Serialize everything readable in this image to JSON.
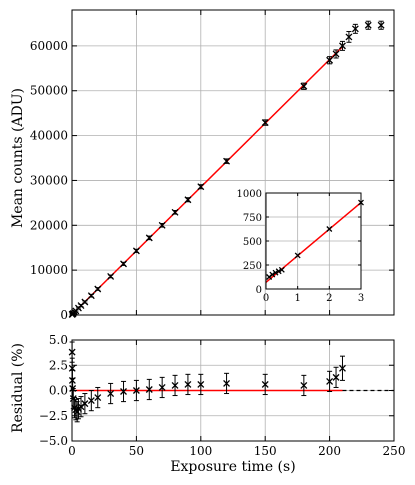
{
  "chart_data": [
    {
      "type": "scatter",
      "panel": "main",
      "ylabel": "Mean counts (ADU)",
      "xlim": [
        0,
        250
      ],
      "ylim": [
        0,
        68000
      ],
      "grid": true,
      "xticks": [
        0,
        50,
        100,
        150,
        200,
        250
      ],
      "yticks": [
        0,
        10000,
        20000,
        30000,
        40000,
        50000,
        60000
      ],
      "ytick_labels": [
        "0",
        "10000",
        "20000",
        "30000",
        "40000",
        "50000",
        "60000"
      ],
      "fit_line": {
        "x": [
          0,
          210
        ],
        "y": [
          95,
          59800
        ],
        "color": "#ff0000"
      },
      "points": [
        {
          "x": 0.1,
          "y": 125,
          "err": 150
        },
        {
          "x": 0.2,
          "y": 150,
          "err": 150
        },
        {
          "x": 0.3,
          "y": 170,
          "err": 150
        },
        {
          "x": 0.5,
          "y": 200,
          "err": 150
        },
        {
          "x": 1,
          "y": 350,
          "err": 150
        },
        {
          "x": 2,
          "y": 630,
          "err": 200
        },
        {
          "x": 3,
          "y": 900,
          "err": 200
        },
        {
          "x": 5,
          "y": 1550,
          "err": 200
        },
        {
          "x": 7,
          "y": 2100,
          "err": 250
        },
        {
          "x": 10,
          "y": 2900,
          "err": 250
        },
        {
          "x": 15,
          "y": 4300,
          "err": 300
        },
        {
          "x": 20,
          "y": 5800,
          "err": 300
        },
        {
          "x": 30,
          "y": 8600,
          "err": 300
        },
        {
          "x": 40,
          "y": 11400,
          "err": 350
        },
        {
          "x": 50,
          "y": 14300,
          "err": 350
        },
        {
          "x": 60,
          "y": 17200,
          "err": 400
        },
        {
          "x": 70,
          "y": 20000,
          "err": 400
        },
        {
          "x": 80,
          "y": 22900,
          "err": 400
        },
        {
          "x": 90,
          "y": 25700,
          "err": 450
        },
        {
          "x": 100,
          "y": 28600,
          "err": 450
        },
        {
          "x": 120,
          "y": 34300,
          "err": 500
        },
        {
          "x": 150,
          "y": 42900,
          "err": 600
        },
        {
          "x": 180,
          "y": 51000,
          "err": 700
        },
        {
          "x": 200,
          "y": 56800,
          "err": 800
        },
        {
          "x": 205,
          "y": 58200,
          "err": 900
        },
        {
          "x": 210,
          "y": 60000,
          "err": 1000
        },
        {
          "x": 215,
          "y": 62000,
          "err": 1200
        },
        {
          "x": 220,
          "y": 63800,
          "err": 1000
        },
        {
          "x": 230,
          "y": 64600,
          "err": 900
        },
        {
          "x": 240,
          "y": 64600,
          "err": 900
        }
      ]
    },
    {
      "type": "scatter",
      "panel": "inset",
      "xlim": [
        0,
        3
      ],
      "ylim": [
        0,
        1000
      ],
      "grid": true,
      "xticks": [
        0,
        1,
        2,
        3
      ],
      "yticks": [
        0,
        250,
        500,
        750,
        1000
      ],
      "fit_line": {
        "x": [
          0,
          3
        ],
        "y": [
          70,
          900
        ],
        "color": "#ff0000"
      },
      "points": [
        {
          "x": 0.1,
          "y": 125
        },
        {
          "x": 0.2,
          "y": 150
        },
        {
          "x": 0.3,
          "y": 170
        },
        {
          "x": 0.4,
          "y": 185
        },
        {
          "x": 0.5,
          "y": 200
        },
        {
          "x": 1,
          "y": 350
        },
        {
          "x": 2,
          "y": 625
        },
        {
          "x": 3,
          "y": 900
        }
      ]
    },
    {
      "type": "scatter",
      "panel": "residual",
      "xlabel": "Exposure time (s)",
      "ylabel": "Residual (%)",
      "xlim": [
        0,
        250
      ],
      "ylim": [
        -5.0,
        5.0
      ],
      "grid": true,
      "xticks": [
        0,
        50,
        100,
        150,
        200,
        250
      ],
      "yticks": [
        -5.0,
        -2.5,
        0.0,
        2.5,
        5.0
      ],
      "ytick_labels": [
        "−5.0",
        "−2.5",
        "0.0",
        "2.5",
        "5.0"
      ],
      "zero_line": {
        "x": [
          0,
          210
        ],
        "color": "#ff0000",
        "extension_to": 250,
        "extension_style": "dashed"
      },
      "points": [
        {
          "x": 0.1,
          "y": 3.8,
          "err": 1.0
        },
        {
          "x": 0.2,
          "y": 2.2,
          "err": 1.0
        },
        {
          "x": 0.3,
          "y": 1.0,
          "err": 1.0
        },
        {
          "x": 0.5,
          "y": 0.2,
          "err": 1.0
        },
        {
          "x": 1,
          "y": -0.8,
          "err": 1.0
        },
        {
          "x": 2,
          "y": -1.7,
          "err": 1.0
        },
        {
          "x": 3,
          "y": -1.9,
          "err": 1.0
        },
        {
          "x": 4,
          "y": -2.1,
          "err": 1.0
        },
        {
          "x": 5,
          "y": -1.8,
          "err": 1.0
        },
        {
          "x": 7,
          "y": -1.6,
          "err": 1.0
        },
        {
          "x": 10,
          "y": -1.3,
          "err": 1.0
        },
        {
          "x": 15,
          "y": -1.0,
          "err": 1.0
        },
        {
          "x": 20,
          "y": -0.7,
          "err": 1.0
        },
        {
          "x": 30,
          "y": -0.3,
          "err": 1.0
        },
        {
          "x": 40,
          "y": -0.1,
          "err": 1.0
        },
        {
          "x": 50,
          "y": 0.0,
          "err": 1.0
        },
        {
          "x": 60,
          "y": 0.1,
          "err": 1.0
        },
        {
          "x": 70,
          "y": 0.3,
          "err": 1.0
        },
        {
          "x": 80,
          "y": 0.5,
          "err": 1.0
        },
        {
          "x": 90,
          "y": 0.6,
          "err": 1.0
        },
        {
          "x": 100,
          "y": 0.6,
          "err": 1.0
        },
        {
          "x": 120,
          "y": 0.7,
          "err": 1.0
        },
        {
          "x": 150,
          "y": 0.6,
          "err": 1.0
        },
        {
          "x": 180,
          "y": 0.5,
          "err": 1.0
        },
        {
          "x": 200,
          "y": 0.9,
          "err": 1.0
        },
        {
          "x": 205,
          "y": 1.3,
          "err": 1.0
        },
        {
          "x": 210,
          "y": 2.2,
          "err": 1.2
        }
      ]
    }
  ]
}
